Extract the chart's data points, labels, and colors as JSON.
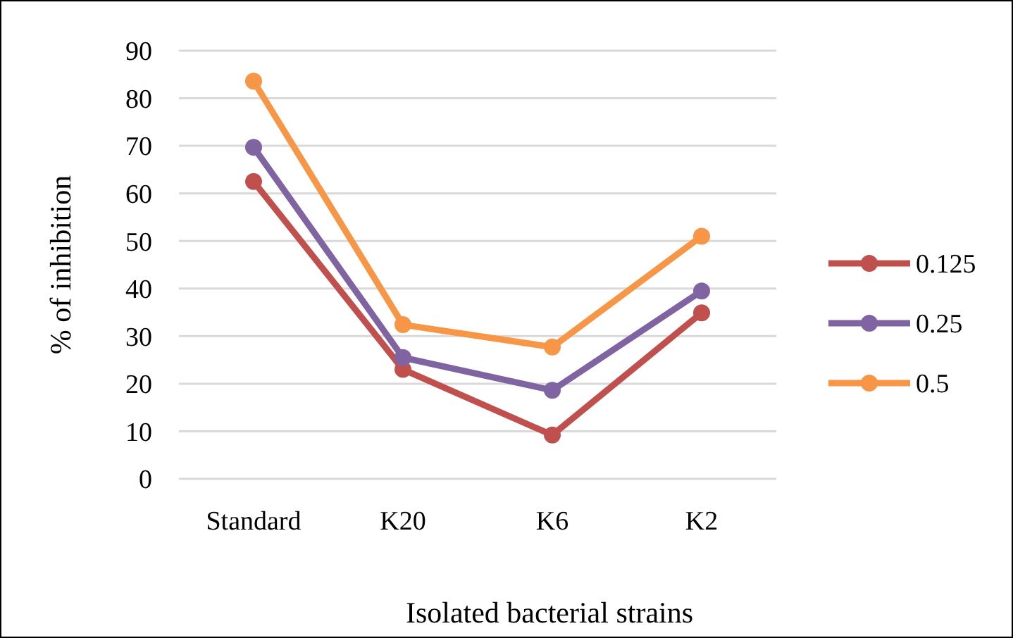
{
  "chart_data": {
    "type": "line",
    "xlabel": "Isolated bacterial strains",
    "ylabel": "% of inhibition",
    "categories": [
      "Standard",
      "K20",
      "K6",
      "K2"
    ],
    "series": [
      {
        "name": "0.125",
        "color": "#c0504d",
        "values": [
          62.5,
          23,
          9.2,
          34.9
        ]
      },
      {
        "name": "0.25",
        "color": "#8064a2",
        "values": [
          69.7,
          25.5,
          18.6,
          39.5
        ]
      },
      {
        "name": "0.5",
        "color": "#f79646",
        "values": [
          83.6,
          32.4,
          27.7,
          51
        ]
      }
    ],
    "ylim": [
      0,
      90
    ],
    "yticks": [
      0,
      10,
      20,
      30,
      40,
      50,
      60,
      70,
      80,
      90
    ],
    "grid": "y",
    "legend": "right",
    "marker": "circle",
    "line_style": "solid"
  }
}
